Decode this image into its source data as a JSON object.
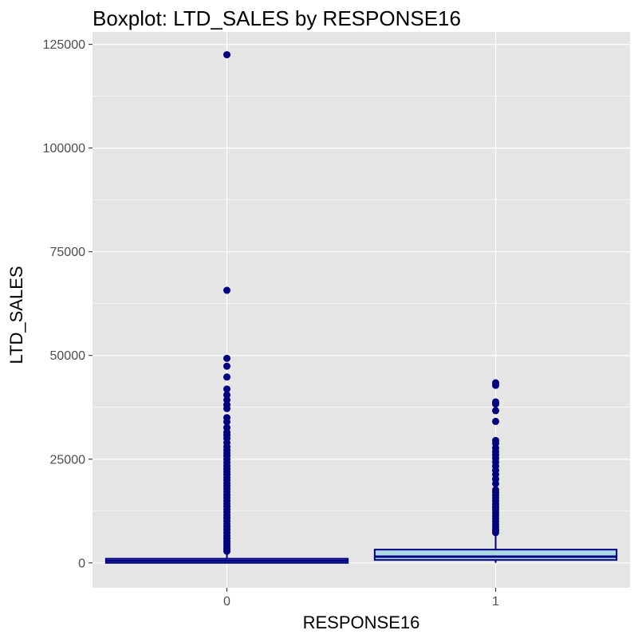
{
  "chart_data": {
    "type": "boxplot",
    "title": "Boxplot: LTD_SALES by RESPONSE16",
    "xlabel": "RESPONSE16",
    "ylabel": "LTD_SALES",
    "categories": [
      "0",
      "1"
    ],
    "ylim": [
      -6000,
      128000
    ],
    "yticks": [
      0,
      25000,
      50000,
      75000,
      100000,
      125000
    ],
    "yticklabels": [
      "0",
      "25000",
      "50000",
      "75000",
      "100000",
      "125000"
    ],
    "grid": true,
    "colors": {
      "panel_bg": "#e5e5e5",
      "grid": "#ffffff",
      "box_fill": "#add8e6",
      "box_line": "#000080",
      "outlier": "#000080"
    },
    "boxes": [
      {
        "category": "0",
        "q1": 0,
        "median": 500,
        "q3": 1000,
        "whisker_low": 0,
        "whisker_high": 2500,
        "outliers": [
          122500,
          65700,
          49300,
          47400,
          44800,
          41900,
          40500,
          39300,
          38100,
          37200,
          35000,
          34000,
          32600,
          31500,
          30800,
          30000,
          29000,
          28000,
          27200,
          26500,
          25800,
          25000,
          24200,
          23400,
          22700,
          22000,
          21300,
          20600,
          19900,
          19200,
          18500,
          17800,
          17100,
          16400,
          15700,
          15000,
          14300,
          13600,
          12900,
          12200,
          11500,
          10800,
          10100,
          9400,
          8700,
          8000,
          7300,
          6600,
          5900,
          5200,
          4600,
          4000,
          3400,
          2800
        ]
      },
      {
        "category": "1",
        "q1": 700,
        "median": 1500,
        "q3": 3200,
        "whisker_low": 0,
        "whisker_high": 6900,
        "outliers": [
          43400,
          42800,
          38800,
          38300,
          36700,
          34100,
          29500,
          28800,
          27700,
          26800,
          26000,
          25200,
          24300,
          23300,
          22300,
          21300,
          20200,
          19100,
          17600,
          17000,
          16300,
          15600,
          14900,
          14200,
          13500,
          12800,
          12100,
          11400,
          10700,
          10000,
          9300,
          8600,
          7900,
          7300
        ]
      }
    ]
  }
}
